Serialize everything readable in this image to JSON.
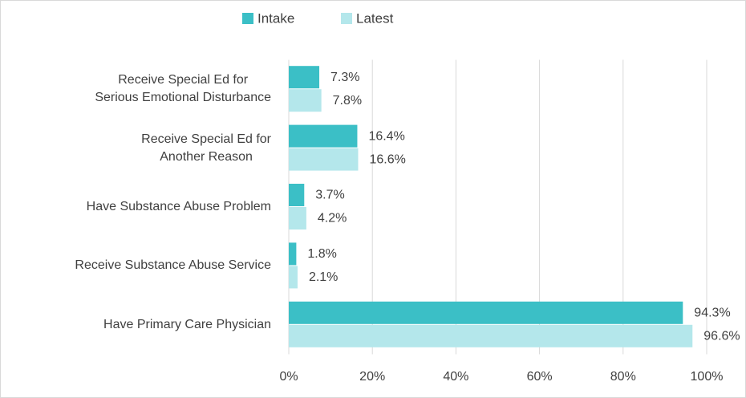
{
  "chart_data": {
    "type": "bar",
    "orientation": "horizontal",
    "categories": [
      "Receive Special Ed for\nSerious Emotional Disturbance",
      "Receive Special Ed for\nAnother Reason",
      "Have Substance Abuse Problem",
      "Receive Substance Abuse Service",
      "Have Primary Care Physician"
    ],
    "series": [
      {
        "name": "Intake",
        "color": "#3bbfc6",
        "values": [
          7.3,
          16.4,
          3.7,
          1.8,
          94.3
        ],
        "value_labels": [
          "7.3%",
          "16.4%",
          "3.7%",
          "1.8%",
          "94.3%"
        ]
      },
      {
        "name": "Latest",
        "color": "#b4e7eb",
        "values": [
          7.8,
          16.6,
          4.2,
          2.1,
          96.6
        ],
        "value_labels": [
          "7.8%",
          "16.6%",
          "4.2%",
          "2.1%",
          "96.6%"
        ]
      }
    ],
    "xlim": [
      0,
      100
    ],
    "xticks": [
      {
        "value": 0,
        "label": "0%"
      },
      {
        "value": 20,
        "label": "20%"
      },
      {
        "value": 40,
        "label": "40%"
      },
      {
        "value": 60,
        "label": "60%"
      },
      {
        "value": 80,
        "label": "80%"
      },
      {
        "value": 100,
        "label": "100%"
      }
    ],
    "grid": true,
    "legend": "top"
  }
}
